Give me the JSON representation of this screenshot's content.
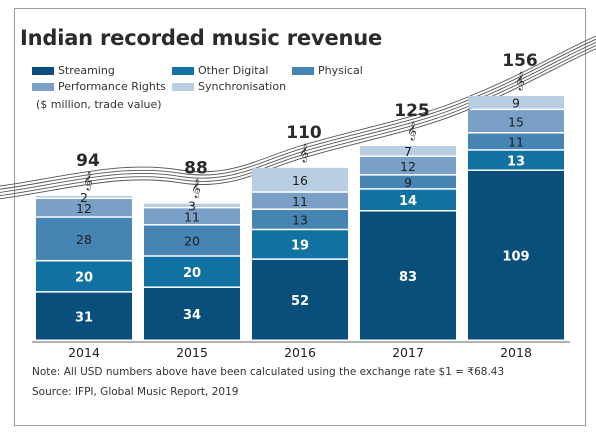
{
  "title": "Indian recorded music revenue",
  "unit_note": "($ million, trade value)",
  "footnote": "Note: All USD numbers above have been calculated using the exchange rate $1 = ₹68.43",
  "source": "Source: IFPI, Global Music Report, 2019",
  "chart_data": {
    "type": "bar",
    "stacked": true,
    "categories": [
      "2014",
      "2015",
      "2016",
      "2017",
      "2018"
    ],
    "series": [
      {
        "name": "Streaming",
        "values": [
          31,
          34,
          52,
          83,
          109
        ],
        "color": "#0a4f7c"
      },
      {
        "name": "Other Digital",
        "values": [
          20,
          20,
          19,
          14,
          13
        ],
        "color": "#1171a3"
      },
      {
        "name": "Physical",
        "values": [
          28,
          20,
          13,
          9,
          11
        ],
        "color": "#4684b3"
      },
      {
        "name": "Performance Rights",
        "values": [
          12,
          11,
          11,
          12,
          15
        ],
        "color": "#7ba0c7"
      },
      {
        "name": "Synchronisation",
        "values": [
          2,
          3,
          16,
          7,
          9
        ],
        "color": "#b9cde2"
      }
    ],
    "totals": [
      94,
      88,
      110,
      125,
      156
    ],
    "legend_position": "top-left",
    "grid": false
  }
}
